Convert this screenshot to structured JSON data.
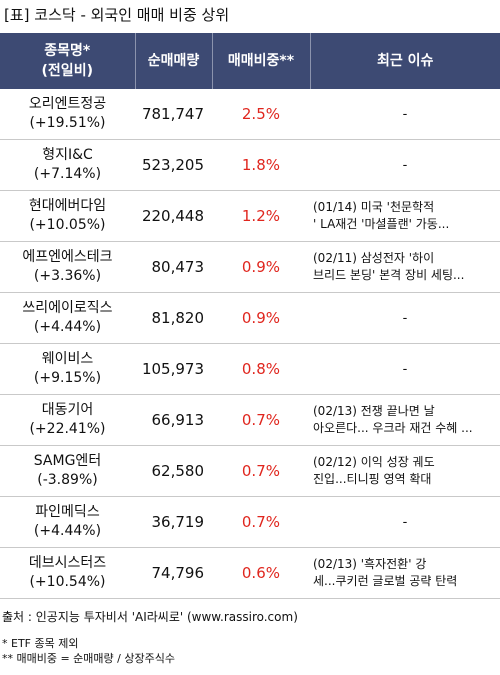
{
  "title": "[표] 코스닥 - 외국인 매매 비중 상위",
  "headers": {
    "name_line1": "종목명*",
    "name_line2": "(전일비)",
    "net_volume": "순매매량",
    "trade_ratio": "매매비중**",
    "recent_issue": "최근 이슈"
  },
  "rows": [
    {
      "name": "오리엔트정공",
      "change": "(+19.51%)",
      "volume": "781,747",
      "ratio": "2.5%",
      "issue1": "-",
      "issue2": ""
    },
    {
      "name": "형지I&C",
      "change": "(+7.14%)",
      "volume": "523,205",
      "ratio": "1.8%",
      "issue1": "-",
      "issue2": ""
    },
    {
      "name": "현대에버다임",
      "change": "(+10.05%)",
      "volume": "220,448",
      "ratio": "1.2%",
      "issue1": "(01/14) 미국 '천문학적",
      "issue2": "' LA재건 '마셜플랜' 가동..."
    },
    {
      "name": "에프엔에스테크",
      "change": "(+3.36%)",
      "volume": "80,473",
      "ratio": "0.9%",
      "issue1": "(02/11) 삼성전자 '하이",
      "issue2": "브리드 본딩' 본격 장비 세팅..."
    },
    {
      "name": "쓰리에이로직스",
      "change": "(+4.44%)",
      "volume": "81,820",
      "ratio": "0.9%",
      "issue1": "-",
      "issue2": ""
    },
    {
      "name": "웨이비스",
      "change": "(+9.15%)",
      "volume": "105,973",
      "ratio": "0.8%",
      "issue1": "-",
      "issue2": ""
    },
    {
      "name": "대동기어",
      "change": "(+22.41%)",
      "volume": "66,913",
      "ratio": "0.7%",
      "issue1": "(02/13) 전쟁 끝나면 날",
      "issue2": "아오른다... 우크라 재건 수혜 ..."
    },
    {
      "name": "SAMG엔터",
      "change": "(-3.89%)",
      "volume": "62,580",
      "ratio": "0.7%",
      "issue1": "(02/12) 이익 성장 궤도",
      "issue2": "진입...티니핑 영역 확대"
    },
    {
      "name": "파인메딕스",
      "change": "(+4.44%)",
      "volume": "36,719",
      "ratio": "0.7%",
      "issue1": "-",
      "issue2": ""
    },
    {
      "name": "데브시스터즈",
      "change": "(+10.54%)",
      "volume": "74,796",
      "ratio": "0.6%",
      "issue1": "(02/13) '흑자전환' 강",
      "issue2": "세...쿠키런 글로벌 공략 탄력"
    }
  ],
  "source": "출처 : 인공지능 투자비서 'AI라씨로' (www.rassiro.com)",
  "note1": "* ETF 종목 제외",
  "note2": "** 매매비중 = 순매매량 / 상장주식수",
  "colors": {
    "header_bg": "#3d4a73",
    "header_text": "#ffffff",
    "ratio_text": "#e0261e"
  }
}
